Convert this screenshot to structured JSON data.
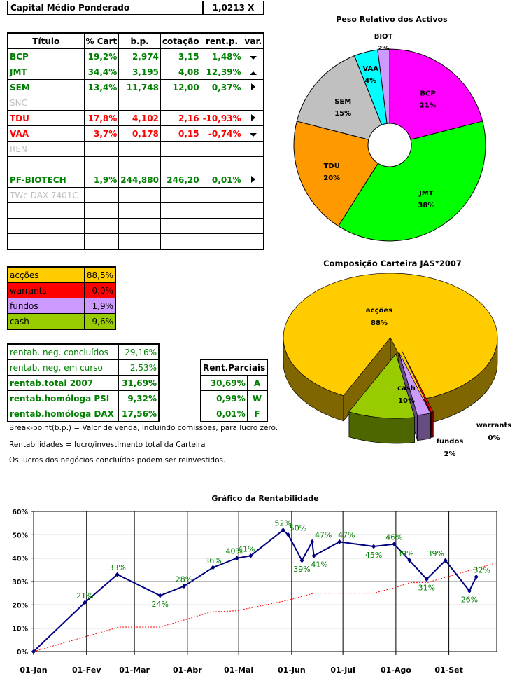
{
  "capital": {
    "label": "Capital Médio Ponderado",
    "value": "1,0213 X"
  },
  "holdings": {
    "headers": [
      "Título",
      "% Cart",
      "b.p.",
      "cotação",
      "rent.p.",
      "var."
    ],
    "rows": [
      {
        "titulo": "BCP",
        "cart": "19,2%",
        "bp": "2,974",
        "cot": "3,15",
        "rent": "1,48%",
        "var": "down",
        "color": "green"
      },
      {
        "titulo": "JMT",
        "cart": "34,4%",
        "bp": "3,195",
        "cot": "4,08",
        "rent": "12,39%",
        "var": "up",
        "color": "green"
      },
      {
        "titulo": "SEM",
        "cart": "13,4%",
        "bp": "11,748",
        "cot": "12,00",
        "rent": "0,37%",
        "var": "right",
        "color": "green"
      },
      {
        "titulo": "SNC",
        "cart": "",
        "bp": "",
        "cot": "",
        "rent": "",
        "var": "",
        "color": "gray"
      },
      {
        "titulo": "TDU",
        "cart": "17,8%",
        "bp": "4,102",
        "cot": "2,16",
        "rent": "-10,93%",
        "var": "right",
        "color": "red"
      },
      {
        "titulo": "VAA",
        "cart": "3,7%",
        "bp": "0,178",
        "cot": "0,15",
        "rent": "-0,74%",
        "var": "down",
        "color": "red"
      },
      {
        "titulo": "REN",
        "cart": "",
        "bp": "",
        "cot": "",
        "rent": "",
        "var": "",
        "color": "gray"
      },
      {
        "titulo": "",
        "cart": "",
        "bp": "",
        "cot": "",
        "rent": "",
        "var": "",
        "color": "green"
      },
      {
        "titulo": "PF-BIOTECH",
        "cart": "1,9%",
        "bp": "244,880",
        "cot": "246,20",
        "rent": "0,01%",
        "var": "right",
        "color": "green"
      },
      {
        "titulo": "TWc.DAX 7401C",
        "cart": "",
        "bp": "",
        "cot": "",
        "rent": "",
        "var": "",
        "color": "gray"
      },
      {
        "titulo": "",
        "cart": "",
        "bp": "",
        "cot": "",
        "rent": "",
        "var": "",
        "color": "green"
      },
      {
        "titulo": "",
        "cart": "",
        "bp": "",
        "cot": "",
        "rent": "",
        "var": "",
        "color": "green"
      },
      {
        "titulo": "",
        "cart": "",
        "bp": "",
        "cot": "",
        "rent": "",
        "var": "",
        "color": "green"
      }
    ]
  },
  "allocation": [
    {
      "label": "acções",
      "value": "88,5%",
      "color": "#FFCC00"
    },
    {
      "label": "warrants",
      "value": "0,0%",
      "color": "#FF0000"
    },
    {
      "label": "fundos",
      "value": "1,9%",
      "color": "#CC99FF"
    },
    {
      "label": "cash",
      "value": "9,6%",
      "color": "#99CC00"
    }
  ],
  "rentab": [
    {
      "label": "rentab. neg. concluídos",
      "value": "29,16%",
      "bold": false
    },
    {
      "label": "rentab. neg. em curso",
      "value": "2,53%",
      "bold": false
    },
    {
      "label": "rentab.total 2007",
      "value": "31,69%",
      "bold": true
    },
    {
      "label": "rentab.homóloga PSI",
      "value": "9,32%",
      "bold": true
    },
    {
      "label": "rentab.homóloga DAX",
      "value": "17,56%",
      "bold": true
    }
  ],
  "parciais": {
    "header": "Rent.Parciais",
    "rows": [
      {
        "value": "30,69%",
        "code": "A"
      },
      {
        "value": "0,99%",
        "code": "W"
      },
      {
        "value": "0,01%",
        "code": "F"
      }
    ]
  },
  "notes": [
    "Break-point(b.p.) = Valor de venda, incluindo comissões, para lucro zero.",
    "Rentabilidades = lucro/investimento total da Carteira",
    "Os lucros dos negócios concluídos podem ser reinvestidos."
  ],
  "chart_data": [
    {
      "type": "pie",
      "variant": "doughnut",
      "title": "Peso Relativo dos Activos",
      "slices": [
        {
          "label": "BCP",
          "value": 21,
          "display": "21%",
          "color": "#FF00FF"
        },
        {
          "label": "JMT",
          "value": 38,
          "display": "38%",
          "color": "#00FF00"
        },
        {
          "label": "TDU",
          "value": 20,
          "display": "20%",
          "color": "#FF9900"
        },
        {
          "label": "SEM",
          "value": 15,
          "display": "15%",
          "color": "#C0C0C0"
        },
        {
          "label": "VAA",
          "value": 4,
          "display": "4%",
          "color": "#00FFFF"
        },
        {
          "label": "BIOT",
          "value": 2,
          "display": "2%",
          "color": "#CC99FF"
        }
      ]
    },
    {
      "type": "pie",
      "variant": "3d-exploded",
      "title": "Composição Carteira JAS*2007",
      "slices": [
        {
          "label": "acções",
          "value": 88,
          "display": "88%",
          "color": "#FFCC00",
          "side": "#7F6600"
        },
        {
          "label": "warrants",
          "value": 0,
          "display": "0%",
          "color": "#FF0000",
          "side": "#800000"
        },
        {
          "label": "fundos",
          "value": 2,
          "display": "2%",
          "color": "#CC99FF",
          "side": "#664C80"
        },
        {
          "label": "cash",
          "value": 10,
          "display": "10%",
          "color": "#99CC00",
          "side": "#4D6600"
        }
      ]
    },
    {
      "type": "line",
      "title": "Gráfico da Rentabilidade",
      "xlabel": "",
      "ylabel": "",
      "xlim": [
        "2007-01-01",
        "2007-09-29"
      ],
      "ylim": [
        0,
        60
      ],
      "grid": true,
      "x_ticks": [
        {
          "date": "2007-01-01",
          "label": "01-Jan"
        },
        {
          "date": "2007-02-01",
          "label": "01-Fev"
        },
        {
          "date": "2007-03-01",
          "label": "01-Mar"
        },
        {
          "date": "2007-04-01",
          "label": "01-Abr"
        },
        {
          "date": "2007-05-01",
          "label": "01-Mai"
        },
        {
          "date": "2007-06-01",
          "label": "01-Jun"
        },
        {
          "date": "2007-07-01",
          "label": "01-Jul"
        },
        {
          "date": "2007-08-01",
          "label": "01-Ago"
        },
        {
          "date": "2007-09-01",
          "label": "01-Set"
        }
      ],
      "y_ticks": [
        "0%",
        "10%",
        "20%",
        "30%",
        "40%",
        "50%",
        "60%"
      ],
      "series": [
        {
          "color": "#000080",
          "labels_color": "#008000",
          "points": [
            {
              "x": "2007-01-01",
              "y": 0,
              "label": ""
            },
            {
              "x": "2007-01-31",
              "y": 21,
              "label": "21%"
            },
            {
              "x": "2007-02-19",
              "y": 33,
              "label": "33%"
            },
            {
              "x": "2007-03-16",
              "y": 24,
              "label": "24%"
            },
            {
              "x": "2007-03-30",
              "y": 28,
              "label": "28%"
            },
            {
              "x": "2007-04-16",
              "y": 36,
              "label": "36%"
            },
            {
              "x": "2007-04-30",
              "y": 40,
              "label": "40%"
            },
            {
              "x": "2007-05-08",
              "y": 41,
              "label": "41%"
            },
            {
              "x": "2007-05-27",
              "y": 52,
              "label": "52%"
            },
            {
              "x": "2007-05-30",
              "y": 50,
              "label": "50%"
            },
            {
              "x": "2007-06-07",
              "y": 39,
              "label": "39%"
            },
            {
              "x": "2007-06-13",
              "y": 47,
              "label": "47%"
            },
            {
              "x": "2007-06-14",
              "y": 41,
              "label": "41%"
            },
            {
              "x": "2007-06-29",
              "y": 47,
              "label": "47%"
            },
            {
              "x": "2007-07-19",
              "y": 45,
              "label": "45%"
            },
            {
              "x": "2007-07-31",
              "y": 46,
              "label": "46%"
            },
            {
              "x": "2007-08-09",
              "y": 39,
              "label": "39%"
            },
            {
              "x": "2007-08-19",
              "y": 31,
              "label": "31%"
            },
            {
              "x": "2007-08-30",
              "y": 39,
              "label": "39%"
            },
            {
              "x": "2007-09-13",
              "y": 26,
              "label": "26%"
            },
            {
              "x": "2007-09-17",
              "y": 32,
              "label": "32%"
            }
          ]
        },
        {
          "color": "#FF0000",
          "style": "dotted",
          "points": [
            {
              "x": "2007-01-01",
              "y": 0
            },
            {
              "x": "2007-02-01",
              "y": 6.5
            },
            {
              "x": "2007-02-20",
              "y": 10.5
            },
            {
              "x": "2007-03-16",
              "y": 10.5
            },
            {
              "x": "2007-03-30",
              "y": 13.5
            },
            {
              "x": "2007-04-15",
              "y": 17
            },
            {
              "x": "2007-04-30",
              "y": 17.5
            },
            {
              "x": "2007-05-30",
              "y": 22
            },
            {
              "x": "2007-06-14",
              "y": 25
            },
            {
              "x": "2007-07-19",
              "y": 25
            },
            {
              "x": "2007-08-01",
              "y": 27.5
            },
            {
              "x": "2007-08-09",
              "y": 29.5
            },
            {
              "x": "2007-08-19",
              "y": 29.5
            },
            {
              "x": "2007-08-31",
              "y": 32
            },
            {
              "x": "2007-09-29",
              "y": 38
            }
          ]
        }
      ]
    }
  ]
}
